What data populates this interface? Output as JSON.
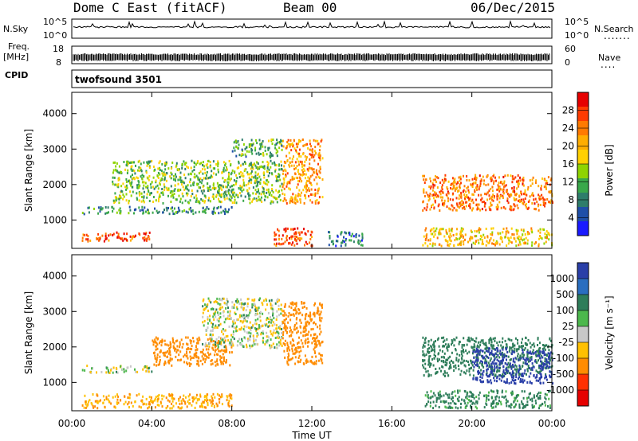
{
  "header": {
    "station": "Dome C East (fitACF)",
    "beam": "Beam 00",
    "date": "06/Dec/2015"
  },
  "top_panels": {
    "nsky_label": "N.Sky",
    "nsearch_label": "N.Search",
    "nsky_ticks_left": [
      "10^5",
      "10^0"
    ],
    "nsky_ticks_right": [
      "10^5",
      "10^0"
    ],
    "freq_label": "Freq.",
    "freq_unit": "[MHz]",
    "freq_ticks": [
      "18",
      "8"
    ],
    "nave_label": "Nave",
    "nave_ticks": [
      "60",
      "0"
    ],
    "cpid_label": "CPID",
    "cpid_value": "twofsound 3501",
    "line_color": "#000000"
  },
  "colorbars": {
    "power": {
      "label": "Power [dB]",
      "ticks": [
        "28",
        "24",
        "20",
        "16",
        "12",
        "8",
        "4"
      ],
      "colors": [
        "#e60000",
        "#ff3b00",
        "#ff7a00",
        "#ffad00",
        "#ffd000",
        "#8fd400",
        "#3aa84a",
        "#2e7d6b",
        "#1f4fa8",
        "#1a1aff"
      ]
    },
    "velocity": {
      "label": "Velocity [m s⁻¹]",
      "ticks": [
        "1000",
        "500",
        "100",
        "25",
        "-25",
        "-100",
        "-500",
        "-1000"
      ],
      "colors": [
        "#2a3fa8",
        "#2a6ec0",
        "#2e7d5a",
        "#4cb84c",
        "#c8c8c8",
        "#ffc000",
        "#ff8c00",
        "#ff3000",
        "#e60000"
      ]
    }
  },
  "chart_data": [
    {
      "type": "heatmap",
      "name": "power",
      "ylabel": "Slant Range [km]",
      "yticks": [
        "4000",
        "3000",
        "2000",
        "1000"
      ],
      "ylim": [
        200,
        4600
      ],
      "xlim": [
        0,
        24
      ],
      "series": [
        {
          "x": [
            0.5,
            4.0
          ],
          "y": [
            430,
            680
          ],
          "value": 26
        },
        {
          "x": [
            0.5,
            8.0
          ],
          "y": [
            1200,
            1400
          ],
          "value": 10
        },
        {
          "x": [
            2.0,
            10.5
          ],
          "y": [
            1500,
            2700
          ],
          "value": 14
        },
        {
          "x": [
            8.0,
            10.5
          ],
          "y": [
            2800,
            3300
          ],
          "value": 12
        },
        {
          "x": [
            10.5,
            12.5
          ],
          "y": [
            1500,
            3300
          ],
          "value": 22
        },
        {
          "x": [
            10.0,
            12.0
          ],
          "y": [
            300,
            800
          ],
          "value": 26
        },
        {
          "x": [
            12.8,
            14.5
          ],
          "y": [
            300,
            700
          ],
          "value": 8
        },
        {
          "x": [
            17.5,
            24.0
          ],
          "y": [
            1300,
            2300
          ],
          "value": 24
        },
        {
          "x": [
            17.5,
            24.0
          ],
          "y": [
            300,
            800
          ],
          "value": 20
        }
      ]
    },
    {
      "type": "heatmap",
      "name": "velocity",
      "ylabel": "Slant Range [km]",
      "yticks": [
        "4000",
        "3000",
        "2000",
        "1000"
      ],
      "ylim": [
        200,
        4600
      ],
      "xlim": [
        0,
        24
      ],
      "xticks": [
        "00:00",
        "04:00",
        "08:00",
        "12:00",
        "16:00",
        "20:00",
        "00:00"
      ],
      "xlabel": "Time UT",
      "series": [
        {
          "x": [
            0.5,
            8.0
          ],
          "y": [
            300,
            700
          ],
          "value": -100
        },
        {
          "x": [
            4.0,
            8.0
          ],
          "y": [
            1500,
            2300
          ],
          "value": -300
        },
        {
          "x": [
            6.5,
            10.5
          ],
          "y": [
            2000,
            3400
          ],
          "value": 0
        },
        {
          "x": [
            10.5,
            12.5
          ],
          "y": [
            1500,
            3300
          ],
          "value": -400
        },
        {
          "x": [
            0.5,
            4.0
          ],
          "y": [
            1300,
            1500
          ],
          "value": 0
        },
        {
          "x": [
            17.5,
            24.0
          ],
          "y": [
            1200,
            2300
          ],
          "value": 200
        },
        {
          "x": [
            17.5,
            24.0
          ],
          "y": [
            300,
            800
          ],
          "value": 100
        },
        {
          "x": [
            20.0,
            24.0
          ],
          "y": [
            1000,
            2000
          ],
          "value": 800
        }
      ]
    }
  ]
}
